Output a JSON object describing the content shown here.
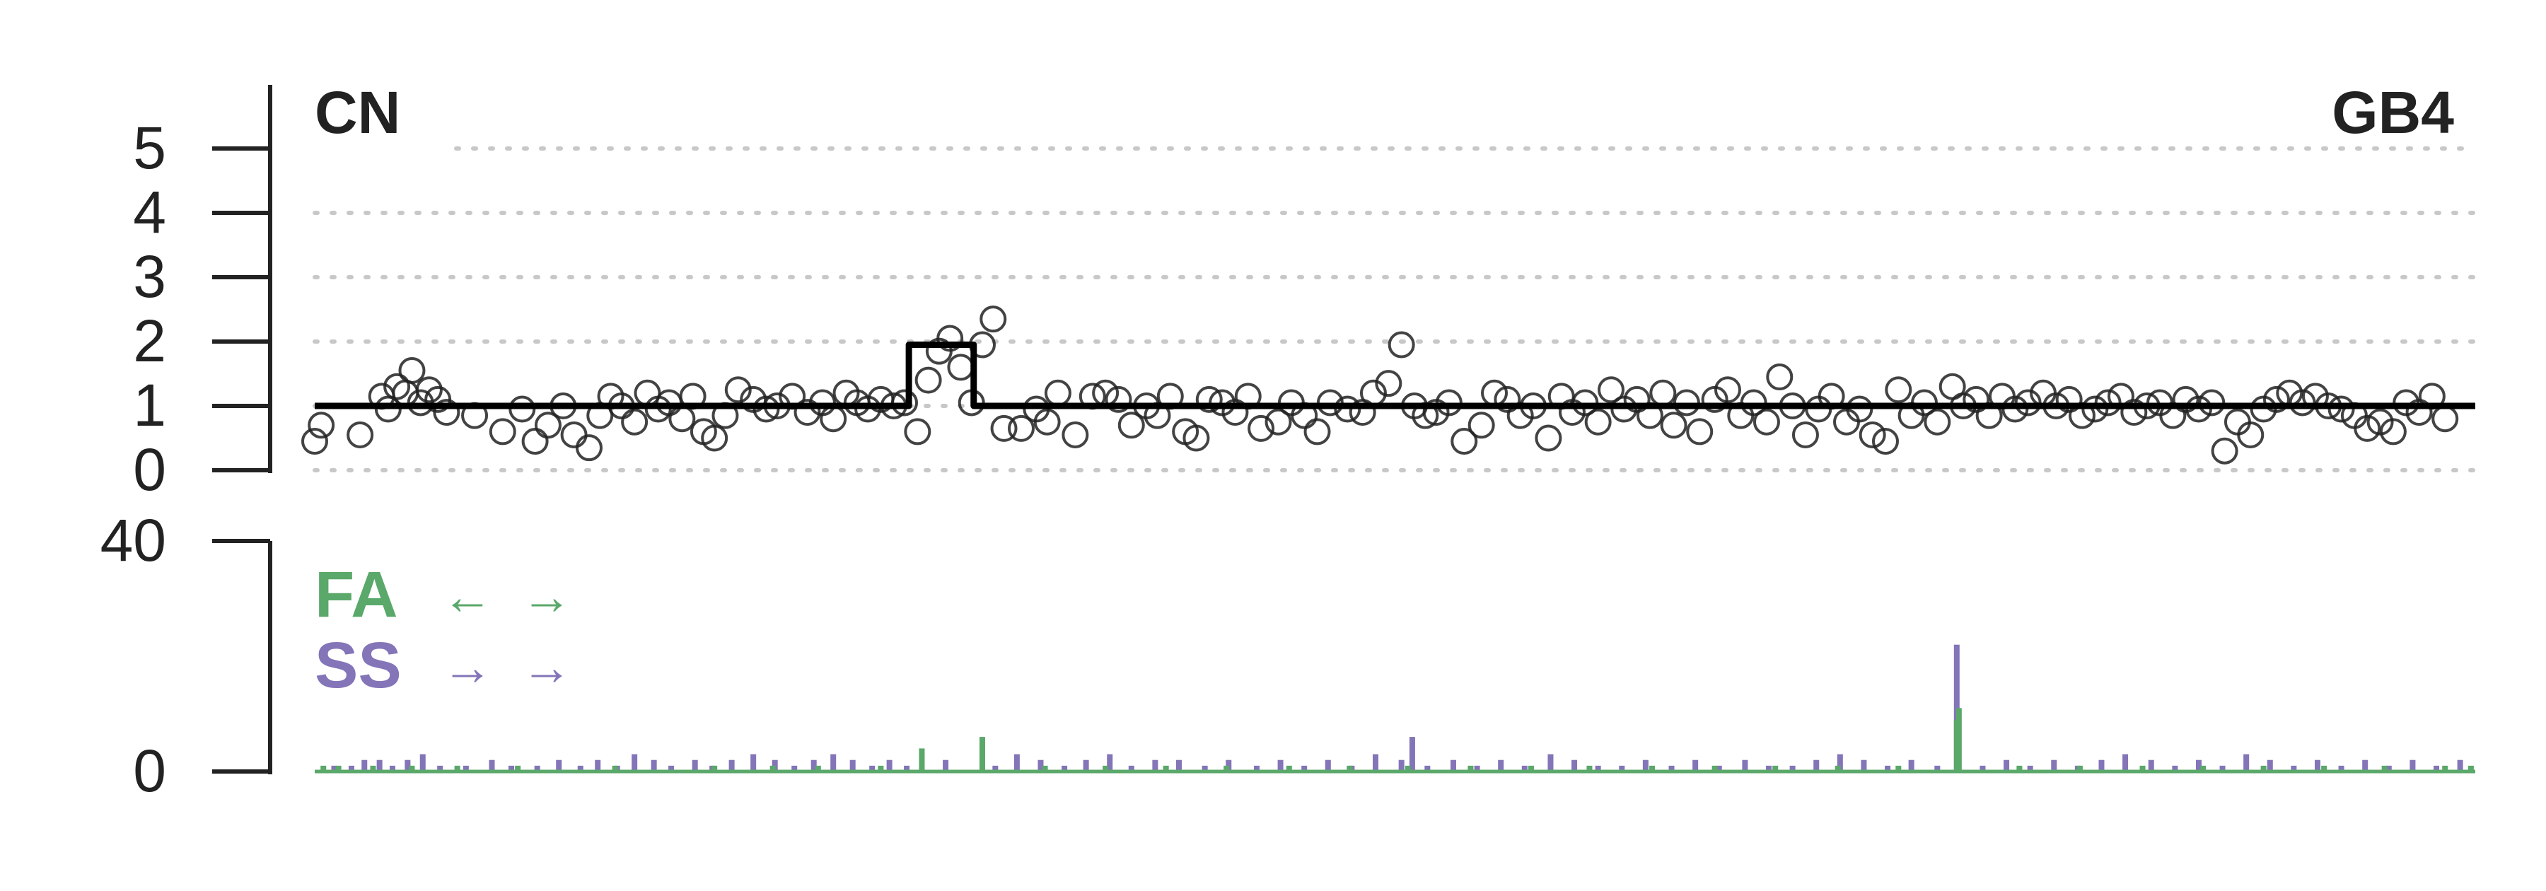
{
  "chart_data": [
    {
      "type": "scatter",
      "panel_label": "CN",
      "sample_label": "GB4",
      "yticks": [
        0,
        1,
        2,
        3,
        4,
        5
      ],
      "ylim": [
        0,
        5
      ],
      "grid": "dotted horizontal at 0-5",
      "point_style": "open circle",
      "colors": {
        "points": "#222222",
        "segment": "#000000",
        "grid": "#c8c8c8"
      },
      "segments": [
        {
          "x0": 0.0,
          "x1": 0.275,
          "y": 1.0
        },
        {
          "x0": 0.275,
          "x1": 0.283,
          "y": 1.95
        },
        {
          "x0": 0.283,
          "x1": 0.305,
          "y": 1.95
        },
        {
          "x0": 0.305,
          "x1": 1.0,
          "y": 1.0
        }
      ],
      "points_x": [
        0.0,
        0.003,
        0.021,
        0.031,
        0.034,
        0.038,
        0.042,
        0.045,
        0.049,
        0.053,
        0.057,
        0.061,
        0.074,
        0.087,
        0.096,
        0.102,
        0.108,
        0.115,
        0.12,
        0.127,
        0.132,
        0.137,
        0.142,
        0.148,
        0.154,
        0.159,
        0.164,
        0.17,
        0.175,
        0.18,
        0.185,
        0.19,
        0.196,
        0.203,
        0.209,
        0.214,
        0.221,
        0.228,
        0.235,
        0.24,
        0.246,
        0.251,
        0.256,
        0.262,
        0.268,
        0.273,
        0.279,
        0.284,
        0.289,
        0.294,
        0.299,
        0.304,
        0.309,
        0.314,
        0.319,
        0.327,
        0.334,
        0.339,
        0.344,
        0.352,
        0.36,
        0.366,
        0.372,
        0.378,
        0.385,
        0.39,
        0.396,
        0.403,
        0.408,
        0.414,
        0.42,
        0.426,
        0.432,
        0.438,
        0.446,
        0.452,
        0.458,
        0.464,
        0.47,
        0.478,
        0.485,
        0.49,
        0.497,
        0.503,
        0.509,
        0.514,
        0.519,
        0.525,
        0.532,
        0.54,
        0.546,
        0.552,
        0.558,
        0.564,
        0.571,
        0.577,
        0.582,
        0.588,
        0.594,
        0.6,
        0.606,
        0.612,
        0.618,
        0.624,
        0.629,
        0.635,
        0.641,
        0.648,
        0.654,
        0.66,
        0.666,
        0.672,
        0.678,
        0.684,
        0.69,
        0.696,
        0.702,
        0.709,
        0.715,
        0.721,
        0.727,
        0.733,
        0.739,
        0.745,
        0.751,
        0.758,
        0.763,
        0.769,
        0.775,
        0.781,
        0.787,
        0.793,
        0.8,
        0.806,
        0.812,
        0.818,
        0.824,
        0.83,
        0.836,
        0.842,
        0.848,
        0.854,
        0.86,
        0.866,
        0.872,
        0.878,
        0.884,
        0.89,
        0.896,
        0.902,
        0.908,
        0.914,
        0.92,
        0.926,
        0.932,
        0.938,
        0.944,
        0.95,
        0.956,
        0.962,
        0.968,
        0.974,
        0.98,
        0.986,
        0.992,
        0.998
      ],
      "points_y": [
        0.45,
        0.7,
        0.55,
        1.15,
        0.95,
        1.3,
        1.2,
        1.55,
        1.05,
        1.25,
        1.1,
        0.9,
        0.85,
        0.6,
        0.95,
        0.45,
        0.7,
        1.0,
        0.55,
        0.35,
        0.85,
        1.15,
        1.0,
        0.75,
        1.2,
        0.95,
        1.05,
        0.8,
        1.15,
        0.6,
        0.5,
        0.85,
        1.25,
        1.1,
        0.95,
        1.0,
        1.15,
        0.9,
        1.05,
        0.8,
        1.2,
        1.05,
        0.95,
        1.1,
        1.0,
        1.05,
        0.6,
        1.4,
        1.85,
        2.05,
        1.6,
        1.05,
        1.95,
        2.35,
        0.65,
        0.65,
        0.95,
        0.75,
        1.2,
        0.55,
        1.15,
        1.2,
        1.1,
        0.7,
        1.0,
        0.85,
        1.15,
        0.6,
        0.5,
        1.1,
        1.05,
        0.9,
        1.15,
        0.65,
        0.75,
        1.05,
        0.85,
        0.6,
        1.05,
        0.95,
        0.9,
        1.2,
        1.35,
        1.95,
        1.0,
        0.85,
        0.9,
        1.05,
        0.45,
        0.7,
        1.2,
        1.1,
        0.85,
        1.0,
        0.5,
        1.15,
        0.9,
        1.05,
        0.75,
        1.25,
        0.95,
        1.1,
        0.85,
        1.2,
        0.7,
        1.05,
        0.6,
        1.1,
        1.25,
        0.85,
        1.05,
        0.75,
        1.45,
        1.0,
        0.55,
        0.95,
        1.15,
        0.75,
        0.95,
        0.55,
        0.45,
        1.25,
        0.85,
        1.05,
        0.75,
        1.3,
        1.0,
        1.1,
        0.85,
        1.15,
        0.95,
        1.05,
        1.2,
        1.0,
        1.1,
        0.85,
        0.95,
        1.05,
        1.15,
        0.9,
        1.0,
        1.05,
        0.85,
        1.1,
        0.95,
        1.05,
        0.3,
        0.75,
        0.55,
        0.95,
        1.1,
        1.2,
        1.05,
        1.15,
        1.0,
        0.95,
        0.85,
        0.65,
        0.75,
        0.6,
        1.05,
        0.9,
        1.15,
        0.8
      ]
    },
    {
      "type": "bar",
      "yticks": [
        0,
        40
      ],
      "ylim": [
        0,
        40
      ],
      "legend": [
        {
          "label": "FA",
          "arrows": "← →",
          "color": "#5aa86a"
        },
        {
          "label": "SS",
          "arrows": "→ →",
          "color": "#8474b8"
        }
      ],
      "series": [
        {
          "name": "FA",
          "x": [
            0.004,
            0.011,
            0.027,
            0.045,
            0.066,
            0.094,
            0.139,
            0.185,
            0.212,
            0.233,
            0.262,
            0.281,
            0.309,
            0.338,
            0.366,
            0.394,
            0.422,
            0.451,
            0.479,
            0.506,
            0.535,
            0.563,
            0.59,
            0.619,
            0.648,
            0.676,
            0.705,
            0.733,
            0.76,
            0.761,
            0.789,
            0.817,
            0.846,
            0.874,
            0.902,
            0.93,
            0.958,
            0.986,
            0.998
          ],
          "values": [
            1,
            1,
            1,
            1,
            1,
            1,
            1,
            1,
            1,
            1,
            1,
            4,
            6,
            1,
            1,
            1,
            1,
            1,
            1,
            1,
            1,
            1,
            1,
            1,
            1,
            1,
            1,
            1,
            9,
            11,
            1,
            1,
            1,
            1,
            1,
            1,
            1,
            1,
            1
          ]
        },
        {
          "name": "SS",
          "x": [
            0.009,
            0.017,
            0.023,
            0.03,
            0.036,
            0.043,
            0.05,
            0.058,
            0.07,
            0.082,
            0.091,
            0.103,
            0.113,
            0.123,
            0.131,
            0.14,
            0.148,
            0.157,
            0.165,
            0.176,
            0.184,
            0.193,
            0.203,
            0.213,
            0.222,
            0.231,
            0.24,
            0.249,
            0.258,
            0.266,
            0.274,
            0.292,
            0.315,
            0.325,
            0.336,
            0.347,
            0.357,
            0.368,
            0.378,
            0.389,
            0.4,
            0.412,
            0.423,
            0.436,
            0.447,
            0.458,
            0.469,
            0.48,
            0.491,
            0.503,
            0.508,
            0.515,
            0.527,
            0.538,
            0.549,
            0.56,
            0.572,
            0.583,
            0.594,
            0.605,
            0.616,
            0.628,
            0.639,
            0.65,
            0.662,
            0.673,
            0.684,
            0.695,
            0.706,
            0.717,
            0.728,
            0.739,
            0.751,
            0.76,
            0.772,
            0.783,
            0.794,
            0.805,
            0.816,
            0.827,
            0.838,
            0.85,
            0.861,
            0.872,
            0.883,
            0.894,
            0.905,
            0.916,
            0.927,
            0.938,
            0.949,
            0.96,
            0.971,
            0.982,
            0.993
          ],
          "values": [
            1,
            1,
            2,
            2,
            1,
            2,
            3,
            1,
            1,
            2,
            1,
            1,
            2,
            1,
            2,
            1,
            3,
            2,
            1,
            2,
            1,
            2,
            3,
            2,
            1,
            2,
            3,
            2,
            1,
            2,
            1,
            2,
            1,
            3,
            2,
            1,
            2,
            3,
            1,
            2,
            2,
            1,
            2,
            1,
            2,
            1,
            2,
            1,
            3,
            2,
            6,
            1,
            2,
            1,
            2,
            1,
            3,
            2,
            1,
            1,
            2,
            1,
            2,
            1,
            2,
            1,
            1,
            2,
            3,
            2,
            1,
            2,
            1,
            22,
            1,
            2,
            1,
            2,
            1,
            2,
            3,
            2,
            1,
            2,
            1,
            3,
            2,
            1,
            2,
            1,
            2,
            1,
            2,
            1,
            2
          ]
        }
      ]
    }
  ]
}
